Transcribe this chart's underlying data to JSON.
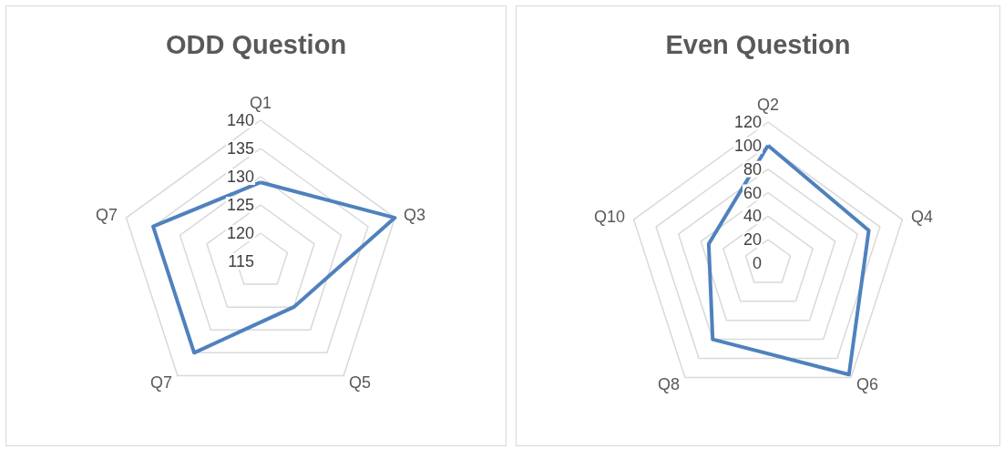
{
  "chart_data": [
    {
      "type": "radar",
      "title": "ODD Question",
      "categories": [
        "Q1",
        "Q3",
        "Q5",
        "Q7",
        "Q7"
      ],
      "ylim": [
        115,
        140
      ],
      "yticks": [
        115,
        120,
        125,
        130,
        135,
        140
      ],
      "grid": true,
      "marker": "none",
      "line_style": "solid",
      "series": [
        {
          "color": "#4f81bd",
          "values": [
            129,
            140,
            125,
            135,
            135
          ]
        }
      ]
    },
    {
      "type": "radar",
      "title": "Even Question",
      "categories": [
        "Q2",
        "Q4",
        "Q6",
        "Q8",
        "Q10"
      ],
      "ylim": [
        0,
        120
      ],
      "yticks": [
        0,
        20,
        40,
        60,
        80,
        100,
        120
      ],
      "grid": true,
      "marker": "none",
      "line_style": "solid",
      "series": [
        {
          "color": "#4f81bd",
          "values": [
            100,
            90,
            117,
            80,
            53
          ]
        }
      ]
    }
  ]
}
